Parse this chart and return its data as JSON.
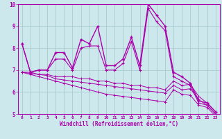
{
  "xlabel": "Windchill (Refroidissement éolien,°C)",
  "xlim": [
    -0.5,
    23.5
  ],
  "ylim": [
    5,
    10
  ],
  "xticks": [
    0,
    1,
    2,
    3,
    4,
    5,
    6,
    7,
    8,
    9,
    10,
    11,
    12,
    13,
    14,
    15,
    16,
    17,
    18,
    19,
    20,
    21,
    22,
    23
  ],
  "yticks": [
    5,
    6,
    7,
    8,
    9,
    10
  ],
  "background_color": "#cce8ec",
  "grid_color": "#aacccc",
  "line_color": "#aa00aa",
  "series1": [
    8.2,
    6.9,
    7.0,
    7.0,
    7.8,
    7.8,
    7.1,
    8.4,
    8.2,
    9.0,
    7.2,
    7.2,
    7.5,
    8.5,
    7.2,
    10.0,
    9.5,
    9.0,
    6.9,
    6.7,
    6.4,
    5.6,
    5.5,
    5.1
  ],
  "series2": [
    8.2,
    6.9,
    7.0,
    7.0,
    7.5,
    7.5,
    7.0,
    8.0,
    8.1,
    8.1,
    7.0,
    7.0,
    7.3,
    8.3,
    7.0,
    9.8,
    9.2,
    8.8,
    6.7,
    6.5,
    6.3,
    5.5,
    5.4,
    5.0
  ],
  "series3": [
    6.9,
    6.9,
    6.8,
    6.8,
    6.7,
    6.7,
    6.7,
    6.6,
    6.6,
    6.5,
    6.5,
    6.4,
    6.4,
    6.3,
    6.3,
    6.2,
    6.2,
    6.1,
    6.5,
    6.3,
    6.35,
    5.8,
    5.5,
    5.1
  ],
  "series4": [
    6.9,
    6.85,
    6.8,
    6.75,
    6.6,
    6.55,
    6.5,
    6.45,
    6.4,
    6.35,
    6.3,
    6.25,
    6.2,
    6.15,
    6.1,
    6.05,
    6.0,
    5.95,
    6.3,
    6.1,
    6.15,
    5.65,
    5.4,
    5.0
  ],
  "series5": [
    6.9,
    6.8,
    6.7,
    6.6,
    6.5,
    6.4,
    6.3,
    6.2,
    6.1,
    6.0,
    5.9,
    5.85,
    5.8,
    5.75,
    5.7,
    5.65,
    5.6,
    5.55,
    6.1,
    5.9,
    5.85,
    5.4,
    5.3,
    4.9
  ]
}
